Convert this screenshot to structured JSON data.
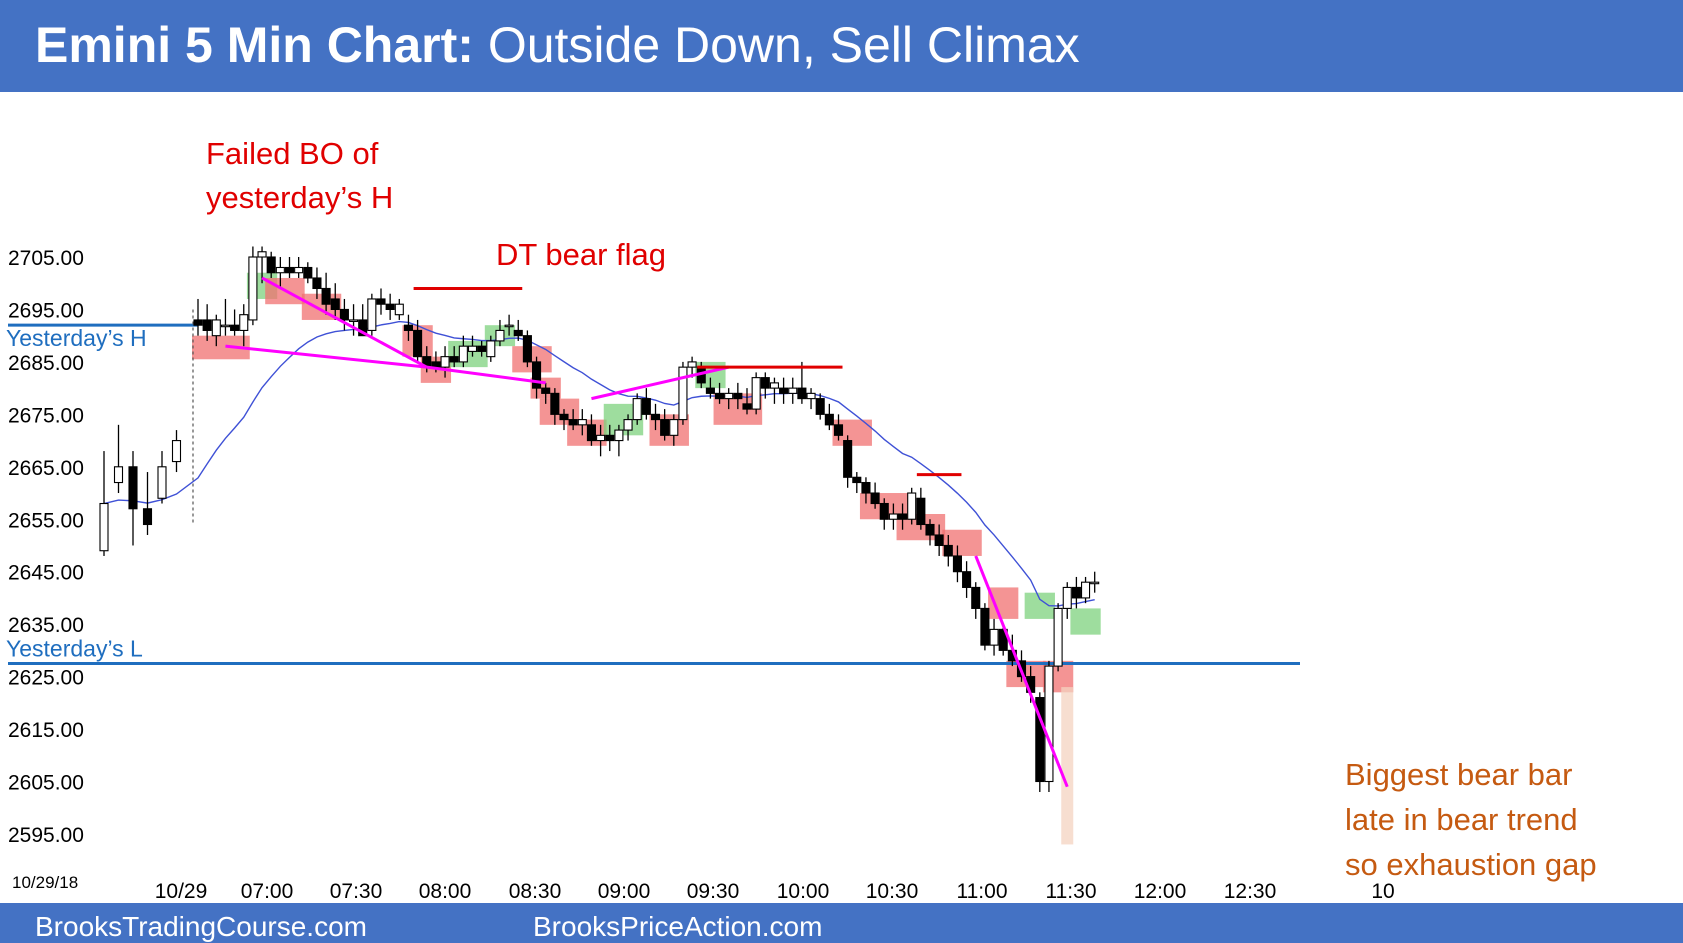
{
  "header": {
    "title_bold": "Emini 5 Min Chart:",
    "title_rest": " Outside Down, Sell Climax"
  },
  "footer": {
    "left": "BrooksTradingCourse.com",
    "right": "BrooksPriceAction.com"
  },
  "colors": {
    "header_bg": "#4472c4",
    "bull_box": "#7ed17e",
    "bear_box": "#f07070",
    "climax_box": "#f4d3c0",
    "ema": "#3f51d6",
    "trendline": "#ff00ff",
    "yesterday_lines": "#1f6ebf",
    "resistance": "#e00000"
  },
  "chart_data": {
    "type": "candlestick",
    "title": "Emini 5 Min Chart: Outside Down, Sell Climax",
    "date_label": "10/29/18",
    "ylim": [
      2590,
      2713
    ],
    "y_ticks": [
      "2705.00",
      "2695.00",
      "2685.00",
      "2675.00",
      "2665.00",
      "2655.00",
      "2645.00",
      "2635.00",
      "2625.00",
      "2615.00",
      "2605.00",
      "2595.00"
    ],
    "x_ticks": [
      "10/29",
      "07:00",
      "07:30",
      "08:00",
      "08:30",
      "09:00",
      "09:30",
      "10:00",
      "10:30",
      "11:00",
      "11:30",
      "12:00",
      "12:30",
      "10"
    ],
    "reference_lines": [
      {
        "label": "Yesterday’s H",
        "value": 2692.0
      },
      {
        "label": "Yesterday’s L",
        "value": 2627.5
      }
    ],
    "annotations": [
      {
        "lines": [
          "Failed BO of",
          "yesterday’s H"
        ],
        "near_bar": 22
      },
      {
        "lines": [
          "DT bear flag"
        ],
        "near_bar": 41
      },
      {
        "lines": [
          "Biggest bear bar",
          "late in bear trend",
          "so exhaustion gap"
        ],
        "near_bar": 136
      }
    ],
    "bars": [
      {
        "o": 2649,
        "h": 2668,
        "l": 2648,
        "c": 2658
      },
      {
        "o": 2662,
        "h": 2673,
        "l": 2660,
        "c": 2665
      },
      {
        "o": 2665,
        "h": 2668,
        "l": 2650,
        "c": 2657
      },
      {
        "o": 2657,
        "h": 2664,
        "l": 2652,
        "c": 2654
      },
      {
        "o": 2659,
        "h": 2668,
        "l": 2658,
        "c": 2665
      },
      {
        "o": 2666,
        "h": 2672,
        "l": 2664,
        "c": 2670
      },
      {
        "o": 2693,
        "h": 2697,
        "l": 2690,
        "c": 2692
      },
      {
        "o": 2693,
        "h": 2696,
        "l": 2689,
        "c": 2691
      },
      {
        "o": 2690,
        "h": 2694,
        "l": 2688,
        "c": 2693
      },
      {
        "o": 2692,
        "h": 2697,
        "l": 2690,
        "c": 2692
      },
      {
        "o": 2692,
        "h": 2695,
        "l": 2690,
        "c": 2691
      },
      {
        "o": 2691,
        "h": 2696,
        "l": 2688,
        "c": 2694
      },
      {
        "o": 2693,
        "h": 2707,
        "l": 2692,
        "c": 2705
      },
      {
        "o": 2705,
        "h": 2707,
        "l": 2700,
        "c": 2706
      },
      {
        "o": 2705,
        "h": 2706,
        "l": 2701,
        "c": 2702
      },
      {
        "o": 2702,
        "h": 2705,
        "l": 2699,
        "c": 2703
      },
      {
        "o": 2703,
        "h": 2705,
        "l": 2701,
        "c": 2702
      },
      {
        "o": 2702,
        "h": 2705,
        "l": 2701,
        "c": 2703
      },
      {
        "o": 2703,
        "h": 2704,
        "l": 2700,
        "c": 2701
      },
      {
        "o": 2701,
        "h": 2703,
        "l": 2697,
        "c": 2699
      },
      {
        "o": 2699,
        "h": 2702,
        "l": 2694,
        "c": 2696
      },
      {
        "o": 2697,
        "h": 2700,
        "l": 2693,
        "c": 2695
      },
      {
        "o": 2695,
        "h": 2697,
        "l": 2691,
        "c": 2693
      },
      {
        "o": 2693,
        "h": 2696,
        "l": 2690,
        "c": 2693
      },
      {
        "o": 2693,
        "h": 2696,
        "l": 2691,
        "c": 2690
      },
      {
        "o": 2691,
        "h": 2698,
        "l": 2690,
        "c": 2697
      },
      {
        "o": 2697,
        "h": 2699,
        "l": 2694,
        "c": 2696
      },
      {
        "o": 2696,
        "h": 2698,
        "l": 2693,
        "c": 2695
      },
      {
        "o": 2694,
        "h": 2697,
        "l": 2693,
        "c": 2696
      },
      {
        "o": 2692,
        "h": 2694,
        "l": 2689,
        "c": 2691
      },
      {
        "o": 2691,
        "h": 2693,
        "l": 2685,
        "c": 2686
      },
      {
        "o": 2686,
        "h": 2688,
        "l": 2683,
        "c": 2684
      },
      {
        "o": 2685,
        "h": 2687,
        "l": 2683,
        "c": 2684
      },
      {
        "o": 2684,
        "h": 2688,
        "l": 2682,
        "c": 2686
      },
      {
        "o": 2686,
        "h": 2688,
        "l": 2684,
        "c": 2685
      },
      {
        "o": 2685,
        "h": 2690,
        "l": 2684,
        "c": 2688
      },
      {
        "o": 2687,
        "h": 2690,
        "l": 2686,
        "c": 2688
      },
      {
        "o": 2688,
        "h": 2689,
        "l": 2686,
        "c": 2687
      },
      {
        "o": 2686,
        "h": 2690,
        "l": 2685,
        "c": 2689
      },
      {
        "o": 2689,
        "h": 2693,
        "l": 2688,
        "c": 2691
      },
      {
        "o": 2692,
        "h": 2694,
        "l": 2690,
        "c": 2692
      },
      {
        "o": 2691,
        "h": 2693,
        "l": 2689,
        "c": 2690
      },
      {
        "o": 2690,
        "h": 2691,
        "l": 2684,
        "c": 2685
      },
      {
        "o": 2685,
        "h": 2686,
        "l": 2678,
        "c": 2680
      },
      {
        "o": 2680,
        "h": 2681,
        "l": 2677,
        "c": 2679
      },
      {
        "o": 2679,
        "h": 2680,
        "l": 2673,
        "c": 2675
      },
      {
        "o": 2675,
        "h": 2676,
        "l": 2672,
        "c": 2674
      },
      {
        "o": 2674,
        "h": 2676,
        "l": 2672,
        "c": 2673
      },
      {
        "o": 2673,
        "h": 2676,
        "l": 2671,
        "c": 2674
      },
      {
        "o": 2673,
        "h": 2675,
        "l": 2669,
        "c": 2670
      },
      {
        "o": 2670,
        "h": 2673,
        "l": 2667,
        "c": 2671
      },
      {
        "o": 2671,
        "h": 2673,
        "l": 2668,
        "c": 2670
      },
      {
        "o": 2670,
        "h": 2673,
        "l": 2667,
        "c": 2672
      },
      {
        "o": 2672,
        "h": 2675,
        "l": 2670,
        "c": 2674
      },
      {
        "o": 2674,
        "h": 2679,
        "l": 2673,
        "c": 2678
      },
      {
        "o": 2678,
        "h": 2680,
        "l": 2674,
        "c": 2675
      },
      {
        "o": 2675,
        "h": 2677,
        "l": 2672,
        "c": 2674
      },
      {
        "o": 2674,
        "h": 2676,
        "l": 2670,
        "c": 2671
      },
      {
        "o": 2671,
        "h": 2675,
        "l": 2669,
        "c": 2674
      },
      {
        "o": 2674,
        "h": 2685,
        "l": 2673,
        "c": 2684
      },
      {
        "o": 2684,
        "h": 2686,
        "l": 2682,
        "c": 2685
      },
      {
        "o": 2684,
        "h": 2685,
        "l": 2680,
        "c": 2681
      },
      {
        "o": 2680,
        "h": 2682,
        "l": 2678,
        "c": 2679
      },
      {
        "o": 2679,
        "h": 2681,
        "l": 2677,
        "c": 2678
      },
      {
        "o": 2678,
        "h": 2680,
        "l": 2676,
        "c": 2679
      },
      {
        "o": 2679,
        "h": 2681,
        "l": 2676,
        "c": 2678
      },
      {
        "o": 2677,
        "h": 2680,
        "l": 2675,
        "c": 2676
      },
      {
        "o": 2676,
        "h": 2683,
        "l": 2675,
        "c": 2682
      },
      {
        "o": 2682,
        "h": 2683,
        "l": 2678,
        "c": 2680
      },
      {
        "o": 2680,
        "h": 2682,
        "l": 2677,
        "c": 2681
      },
      {
        "o": 2680,
        "h": 2682,
        "l": 2677,
        "c": 2679
      },
      {
        "o": 2679,
        "h": 2682,
        "l": 2677,
        "c": 2680
      },
      {
        "o": 2680,
        "h": 2685,
        "l": 2677,
        "c": 2678
      },
      {
        "o": 2678,
        "h": 2680,
        "l": 2676,
        "c": 2679
      },
      {
        "o": 2678,
        "h": 2679,
        "l": 2674,
        "c": 2675
      },
      {
        "o": 2675,
        "h": 2677,
        "l": 2672,
        "c": 2673
      },
      {
        "o": 2673,
        "h": 2675,
        "l": 2670,
        "c": 2671
      },
      {
        "o": 2670,
        "h": 2671,
        "l": 2661,
        "c": 2663
      },
      {
        "o": 2663,
        "h": 2664,
        "l": 2660,
        "c": 2662
      },
      {
        "o": 2662,
        "h": 2663,
        "l": 2658,
        "c": 2660
      },
      {
        "o": 2660,
        "h": 2662,
        "l": 2657,
        "c": 2658
      },
      {
        "o": 2658,
        "h": 2659,
        "l": 2653,
        "c": 2655
      },
      {
        "o": 2655,
        "h": 2658,
        "l": 2653,
        "c": 2656
      },
      {
        "o": 2656,
        "h": 2658,
        "l": 2653,
        "c": 2655
      },
      {
        "o": 2655,
        "h": 2661,
        "l": 2654,
        "c": 2660
      },
      {
        "o": 2659,
        "h": 2661,
        "l": 2653,
        "c": 2654
      },
      {
        "o": 2654,
        "h": 2655,
        "l": 2650,
        "c": 2652
      },
      {
        "o": 2652,
        "h": 2654,
        "l": 2648,
        "c": 2650
      },
      {
        "o": 2650,
        "h": 2652,
        "l": 2646,
        "c": 2648
      },
      {
        "o": 2648,
        "h": 2650,
        "l": 2643,
        "c": 2645
      },
      {
        "o": 2645,
        "h": 2647,
        "l": 2640,
        "c": 2642
      },
      {
        "o": 2642,
        "h": 2643,
        "l": 2636,
        "c": 2638
      },
      {
        "o": 2638,
        "h": 2639,
        "l": 2630,
        "c": 2631
      },
      {
        "o": 2631,
        "h": 2636,
        "l": 2629,
        "c": 2634
      },
      {
        "o": 2634,
        "h": 2635,
        "l": 2629,
        "c": 2630
      },
      {
        "o": 2630,
        "h": 2633,
        "l": 2627,
        "c": 2628
      },
      {
        "o": 2628,
        "h": 2630,
        "l": 2624,
        "c": 2625
      },
      {
        "o": 2625,
        "h": 2627,
        "l": 2620,
        "c": 2622
      },
      {
        "o": 2621,
        "h": 2622,
        "l": 2603,
        "c": 2605
      },
      {
        "o": 2605,
        "h": 2628,
        "l": 2603,
        "c": 2627
      },
      {
        "o": 2627,
        "h": 2639,
        "l": 2626,
        "c": 2638
      },
      {
        "o": 2638,
        "h": 2643,
        "l": 2636,
        "c": 2642
      },
      {
        "o": 2642,
        "h": 2644,
        "l": 2638,
        "c": 2640
      },
      {
        "o": 2640,
        "h": 2644,
        "l": 2639,
        "c": 2643
      },
      {
        "o": 2643,
        "h": 2645,
        "l": 2641,
        "c": 2643
      }
    ]
  }
}
